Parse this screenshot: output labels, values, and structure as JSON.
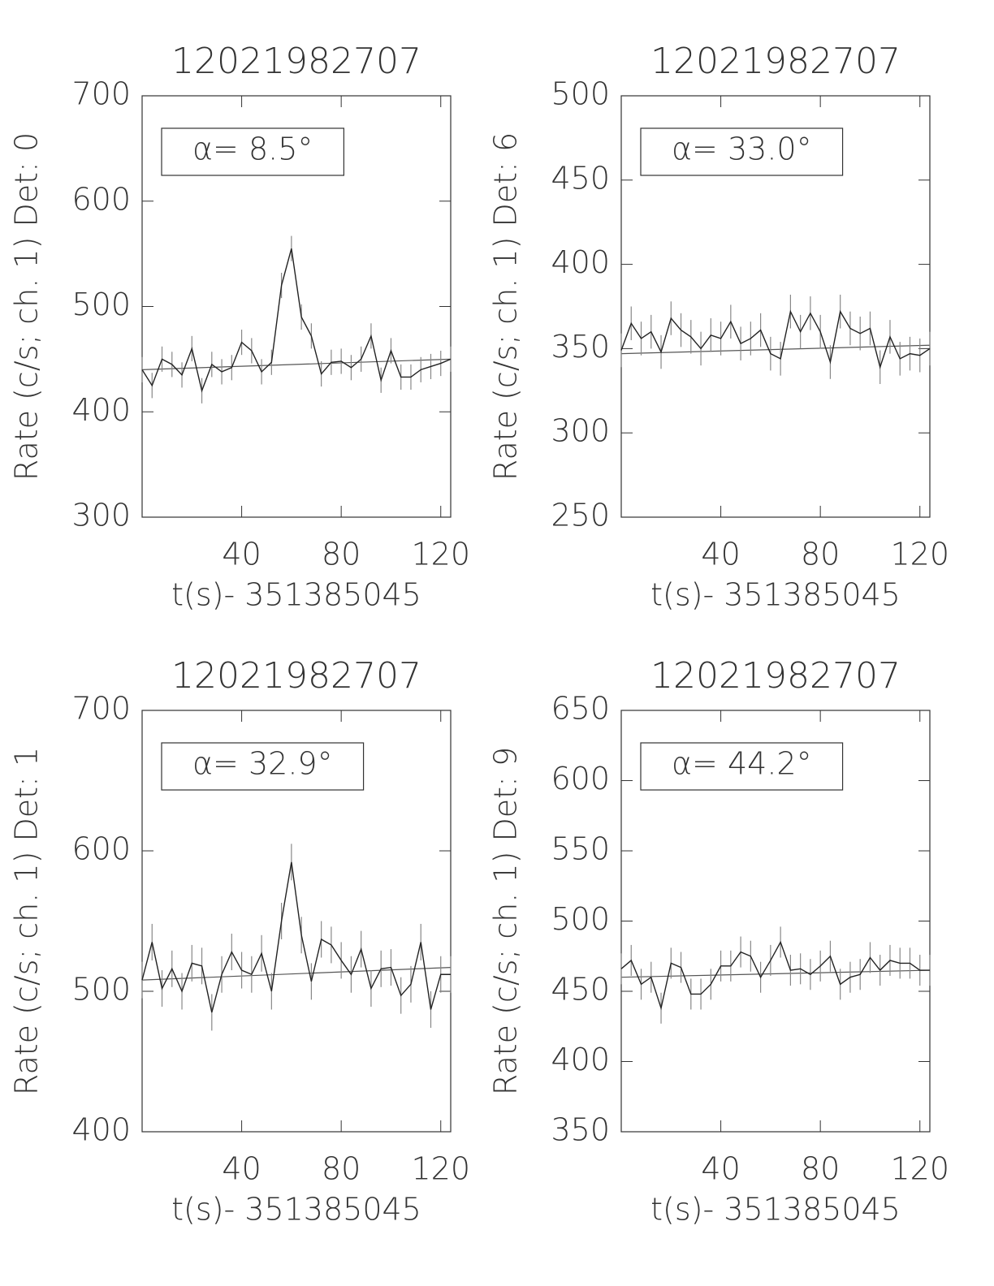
{
  "chart_data": [
    {
      "type": "line",
      "title": "12021982707",
      "xlabel": "t(s)- 351385045",
      "ylabel": "Rate (c/s; ch. 1) Det: 0",
      "annotation": "α= 8.5°",
      "x": [
        0,
        4,
        8,
        12,
        16,
        20,
        24,
        28,
        32,
        36,
        40,
        44,
        48,
        52,
        56,
        60,
        64,
        68,
        72,
        76,
        80,
        84,
        88,
        92,
        96,
        100,
        104,
        108,
        112,
        116,
        120,
        124
      ],
      "series": [
        {
          "color": "#222",
          "error": 12,
          "values": [
            440,
            425,
            450,
            445,
            435,
            460,
            420,
            445,
            438,
            442,
            466,
            458,
            438,
            447,
            520,
            555,
            490,
            472,
            436,
            447,
            448,
            442,
            450,
            472,
            430,
            458,
            433,
            433,
            440,
            443,
            446,
            450
          ]
        }
      ],
      "fit": {
        "color": "#555",
        "x": [
          0,
          124
        ],
        "values": [
          440,
          450
        ]
      },
      "xlim": [
        0,
        124
      ],
      "ylim": [
        300,
        700
      ],
      "xticks": [
        40,
        80,
        120
      ],
      "yticks": [
        300,
        400,
        500,
        600,
        700
      ]
    },
    {
      "type": "line",
      "title": "12021982707",
      "xlabel": "t(s)- 351385045",
      "ylabel": "Rate (c/s; ch. 1) Det: 6",
      "annotation": "α= 33.0°",
      "x": [
        0,
        4,
        8,
        12,
        16,
        20,
        24,
        28,
        32,
        36,
        40,
        44,
        48,
        52,
        56,
        60,
        64,
        68,
        72,
        76,
        80,
        84,
        88,
        92,
        96,
        100,
        104,
        108,
        112,
        116,
        120,
        124
      ],
      "series": [
        {
          "color": "#222",
          "error": 10,
          "values": [
            349,
            365,
            356,
            360,
            348,
            368,
            361,
            357,
            350,
            358,
            356,
            366,
            353,
            356,
            361,
            347,
            344,
            372,
            360,
            371,
            360,
            342,
            372,
            362,
            359,
            362,
            339,
            357,
            344,
            347,
            346,
            350
          ]
        }
      ],
      "fit": {
        "color": "#555",
        "x": [
          0,
          124
        ],
        "values": [
          347,
          352
        ]
      },
      "xlim": [
        0,
        124
      ],
      "ylim": [
        250,
        500
      ],
      "xticks": [
        40,
        80,
        120
      ],
      "yticks": [
        250,
        300,
        350,
        400,
        450,
        500
      ]
    },
    {
      "type": "line",
      "title": "12021982707",
      "xlabel": "t(s)- 351385045",
      "ylabel": "Rate (c/s; ch. 1) Det: 1",
      "annotation": "α= 32.9°",
      "x": [
        0,
        4,
        8,
        12,
        16,
        20,
        24,
        28,
        32,
        36,
        40,
        44,
        48,
        52,
        56,
        60,
        64,
        68,
        72,
        76,
        80,
        84,
        88,
        92,
        96,
        100,
        104,
        108,
        112,
        116,
        120,
        124
      ],
      "series": [
        {
          "color": "#222",
          "error": 13,
          "values": [
            508,
            535,
            502,
            516,
            500,
            520,
            518,
            485,
            512,
            528,
            515,
            512,
            527,
            500,
            550,
            592,
            540,
            507,
            537,
            533,
            522,
            512,
            530,
            502,
            516,
            517,
            497,
            505,
            535,
            487,
            512,
            512
          ]
        }
      ],
      "fit": {
        "color": "#555",
        "x": [
          0,
          124
        ],
        "values": [
          508,
          517
        ]
      },
      "xlim": [
        0,
        124
      ],
      "ylim": [
        400,
        700
      ],
      "xticks": [
        40,
        80,
        120
      ],
      "yticks": [
        400,
        500,
        600,
        700
      ]
    },
    {
      "type": "line",
      "title": "12021982707",
      "xlabel": "t(s)- 351385045",
      "ylabel": "Rate (c/s; ch. 1) Det: 9",
      "annotation": "α= 44.2°",
      "x": [
        0,
        4,
        8,
        12,
        16,
        20,
        24,
        28,
        32,
        36,
        40,
        44,
        48,
        52,
        56,
        60,
        64,
        68,
        72,
        76,
        80,
        84,
        88,
        92,
        96,
        100,
        104,
        108,
        112,
        116,
        120,
        124
      ],
      "series": [
        {
          "color": "#222",
          "error": 11,
          "values": [
            466,
            472,
            455,
            460,
            438,
            470,
            467,
            448,
            448,
            455,
            468,
            468,
            478,
            475,
            460,
            472,
            485,
            465,
            466,
            462,
            468,
            475,
            455,
            460,
            462,
            474,
            465,
            472,
            470,
            470,
            465,
            465
          ]
        }
      ],
      "fit": {
        "color": "#555",
        "x": [
          0,
          124
        ],
        "values": [
          460,
          465
        ]
      },
      "xlim": [
        0,
        124
      ],
      "ylim": [
        350,
        650
      ],
      "xticks": [
        40,
        80,
        120
      ],
      "yticks": [
        350,
        400,
        450,
        500,
        550,
        600,
        650
      ]
    }
  ]
}
